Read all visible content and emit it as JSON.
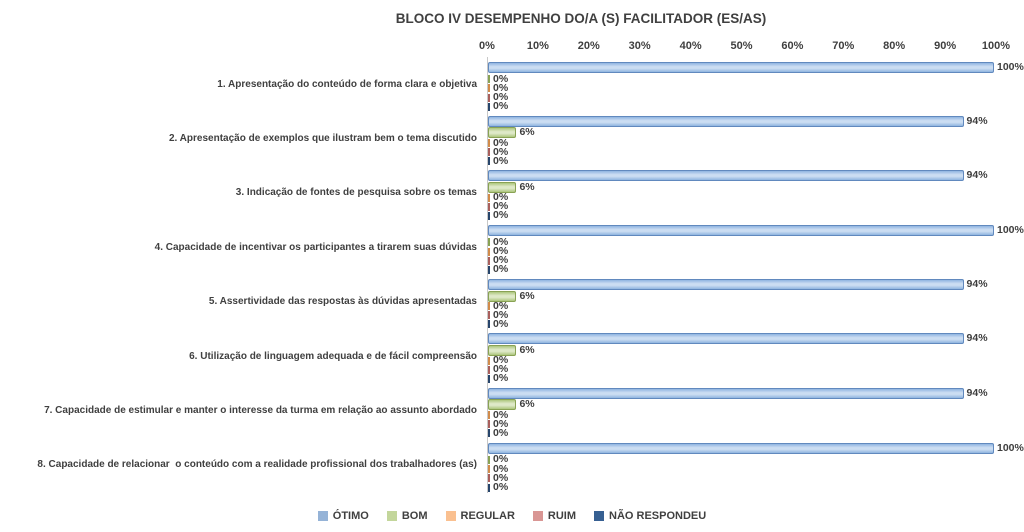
{
  "chart_data": {
    "type": "bar",
    "orientation": "horizontal",
    "title": "BLOCO IV DESEMPENHO DO/A (S) FACILITADOR (ES/AS)",
    "x_ticks": [
      "0%",
      "10%",
      "20%",
      "30%",
      "40%",
      "50%",
      "60%",
      "70%",
      "80%",
      "90%",
      "100%"
    ],
    "xlim": [
      0,
      100
    ],
    "gridlines": false,
    "data_labels": true,
    "legend_position": "bottom",
    "categories": [
      "1. Apresentação do conteúdo de forma clara e objetiva",
      "2. Apresentação de exemplos que ilustram bem o tema discutido",
      "3. Indicação de fontes de pesquisa sobre os temas",
      "4. Capacidade de incentivar os participantes a tirarem suas dúvidas",
      "5. Assertividade das respostas às dúvidas apresentadas",
      "6. Utilização de linguagem adequada e de fácil compreensão",
      "7. Capacidade de estimular e manter o interesse da turma em relação ao assunto abordado",
      "8. Capacidade de relacionar  o conteúdo com a realidade profissional dos trabalhadores (as)"
    ],
    "series": [
      {
        "name": "ÓTIMO",
        "swatch": "#95B3D7",
        "fill": "#8FB4E0",
        "fill_light": "#CBDDF2",
        "border": "#6189BE",
        "values": [
          100,
          94,
          94,
          100,
          94,
          94,
          94,
          100
        ]
      },
      {
        "name": "BOM",
        "swatch": "#C3D69B",
        "fill": "#ACC67C",
        "fill_light": "#DEE9C8",
        "border": "#89A254",
        "values": [
          0,
          6,
          6,
          0,
          6,
          6,
          6,
          0
        ]
      },
      {
        "name": "REGULAR",
        "swatch": "#FAC090",
        "fill": "#F5B57E",
        "fill_light": "#FBD9BC",
        "border": "#D18B4A",
        "values": [
          0,
          0,
          0,
          0,
          0,
          0,
          0,
          0
        ]
      },
      {
        "name": "RUIM",
        "swatch": "#D99694",
        "fill": "#D18E8C",
        "fill_light": "#EBC4C3",
        "border": "#A95F5C",
        "values": [
          0,
          0,
          0,
          0,
          0,
          0,
          0,
          0
        ]
      },
      {
        "name": "NÃO RESPONDEU",
        "swatch": "#376092",
        "fill": "#37608F",
        "fill_light": "#5F86B7",
        "border": "#27456B",
        "values": [
          0,
          0,
          0,
          0,
          0,
          0,
          0,
          0
        ]
      }
    ]
  },
  "layout_text": {
    "value_suffix": "%"
  }
}
